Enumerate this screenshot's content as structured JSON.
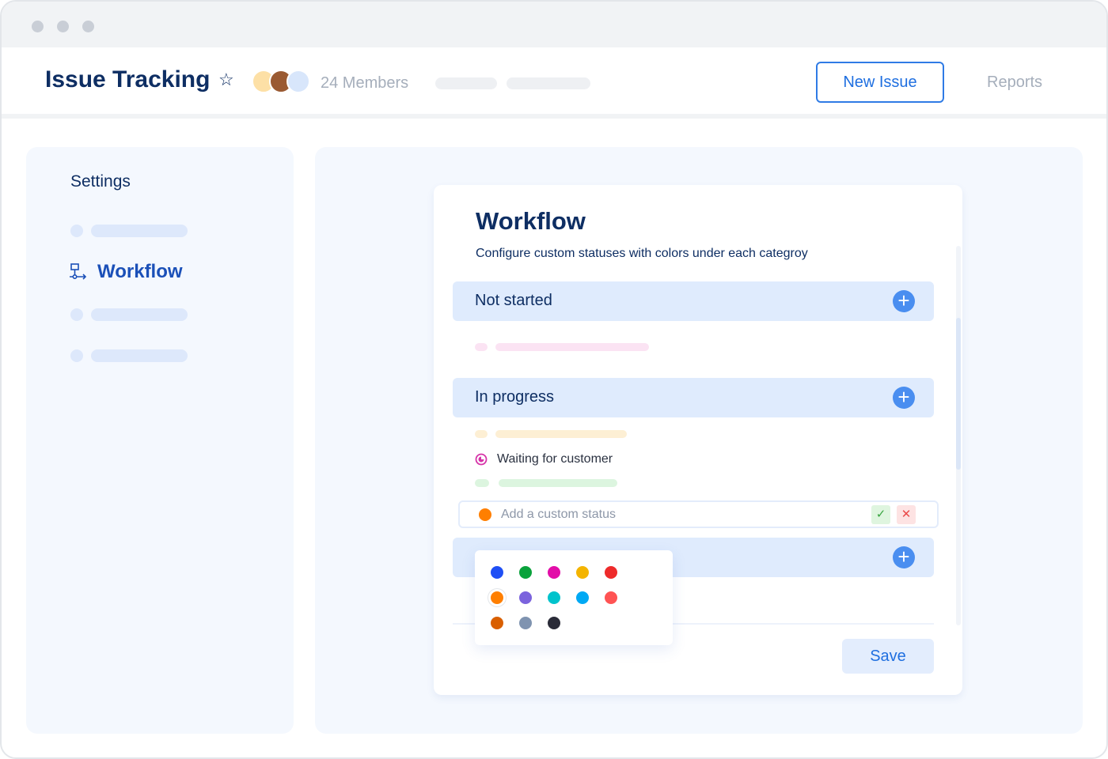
{
  "header": {
    "title": "Issue Tracking",
    "members": "24 Members",
    "new_issue": "New Issue",
    "reports": "Reports"
  },
  "sidebar": {
    "heading": "Settings",
    "active_item": "Workflow"
  },
  "workflow": {
    "title": "Workflow",
    "subtitle": "Configure custom statuses with colors under each categroy",
    "sections": [
      {
        "label": "Not started"
      },
      {
        "label": "In progress"
      },
      {
        "label": ""
      }
    ],
    "status_item": "Waiting for customer",
    "new_status": {
      "placeholder": "Add a custom status",
      "color": "#ff7f00"
    },
    "save": "Save"
  },
  "palette": [
    "#1f4ff5",
    "#0aa23c",
    "#e20ea8",
    "#f4b400",
    "#ee2b2b",
    "#ff7f00",
    "#7b63dd",
    "#00c3cc",
    "#00a9f4",
    "#ff5353",
    "#d95f00",
    "#7f93b0",
    "#2a2b38"
  ],
  "palette_selected": "#ff7f00"
}
